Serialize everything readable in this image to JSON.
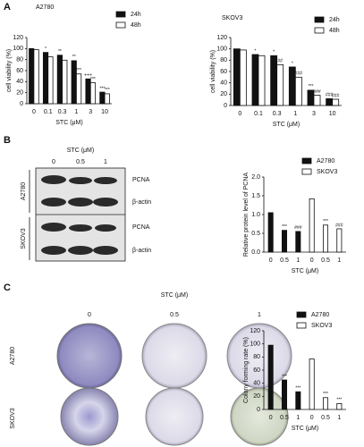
{
  "panels": [
    "A",
    "B",
    "C"
  ],
  "blot": {
    "treatment": "STC (μM)",
    "doses": [
      "0",
      "0.5",
      "1"
    ],
    "cell_lines": [
      "A2780",
      "SKOV3"
    ],
    "proteins": [
      "PCNA",
      "β-actin",
      "PCNA",
      "β-actin"
    ]
  },
  "colony": {
    "treatment": "STC (μM)",
    "doses": [
      "0",
      "0.5",
      "1"
    ],
    "cell_lines": [
      "A2780",
      "SKOV3"
    ]
  },
  "chart_data": [
    {
      "type": "bar",
      "title": "A2780",
      "ylabel": "cell viability (%)",
      "xlabel": "STC (μM)",
      "categories": [
        "0",
        "0.1",
        "0.3",
        "1",
        "3",
        "10"
      ],
      "series": [
        {
          "name": "24h",
          "color": "#111111",
          "values": [
            100,
            93,
            88,
            78,
            45,
            21
          ],
          "significance": [
            null,
            "*",
            "**",
            "**",
            "+++",
            "***"
          ]
        },
        {
          "name": "48h",
          "color": "#ffffff",
          "values": [
            98,
            85,
            79,
            54,
            38,
            18
          ],
          "significance": [
            null,
            null,
            null,
            "***",
            "***",
            "***"
          ]
        }
      ],
      "ylim": [
        0,
        120
      ],
      "yticks": [
        0,
        20,
        40,
        60,
        80,
        100,
        120
      ]
    },
    {
      "type": "bar",
      "title": "SKOV3",
      "ylabel": "cell viability (%)",
      "xlabel": "STC (μM)",
      "categories": [
        "0",
        "0.1",
        "0.3",
        "1",
        "3",
        "10"
      ],
      "series": [
        {
          "name": "24h",
          "color": "#111111",
          "values": [
            100,
            90,
            88,
            68,
            27,
            12
          ],
          "significance": [
            null,
            "*",
            "*",
            "*",
            "***",
            "###"
          ]
        },
        {
          "name": "48h",
          "color": "#ffffff",
          "values": [
            98,
            88,
            72,
            50,
            18,
            11
          ],
          "significance": [
            null,
            null,
            "##",
            "###",
            "###",
            "###"
          ]
        }
      ],
      "ylim": [
        0,
        120
      ],
      "yticks": [
        0,
        20,
        40,
        60,
        80,
        100,
        120
      ]
    },
    {
      "type": "bar",
      "ylabel": "Relative protein level of PCNA",
      "xlabel": "STC (μM)",
      "categories": [
        "0",
        "0.5",
        "1",
        "0",
        "0.5",
        "1"
      ],
      "series": [
        {
          "name": "A2780",
          "color": "#111111",
          "values": [
            1.05,
            0.58,
            0.55,
            null,
            null,
            null
          ],
          "significance": [
            null,
            "***",
            "###",
            null,
            null,
            null
          ]
        },
        {
          "name": "SKOV3",
          "color": "#ffffff",
          "values": [
            null,
            null,
            null,
            1.42,
            0.72,
            0.62
          ],
          "significance": [
            null,
            null,
            null,
            null,
            "***",
            "###"
          ]
        }
      ],
      "ylim": [
        0,
        2
      ],
      "yticks": [
        {
          "value": 0,
          "label": "0.0"
        },
        0.5,
        {
          "value": 1,
          "label": "1.0"
        },
        1.5,
        {
          "value": 2,
          "label": "2.0"
        }
      ]
    },
    {
      "type": "bar",
      "ylabel": "Colony forming rate (%)",
      "xlabel": "STC (μM)",
      "categories": [
        "0",
        "0.5",
        "1",
        "0",
        "0.5",
        "1"
      ],
      "series": [
        {
          "name": "A2780",
          "color": "#111111",
          "values": [
            98,
            45,
            27,
            null,
            null,
            null
          ],
          "significance": [
            null,
            "***",
            "***",
            null,
            null,
            null
          ]
        },
        {
          "name": "SKOV3",
          "color": "#ffffff",
          "values": [
            null,
            null,
            null,
            77,
            18,
            9
          ],
          "significance": [
            null,
            null,
            null,
            null,
            "***",
            "***"
          ]
        }
      ],
      "ylim": [
        0,
        120
      ],
      "yticks": [
        0,
        20,
        40,
        60,
        80,
        100,
        120
      ]
    }
  ]
}
